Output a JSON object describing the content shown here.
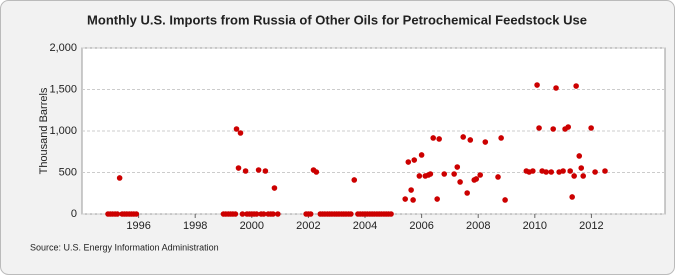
{
  "chart_data": {
    "type": "scatter",
    "title": "Monthly U.S. Imports from Russia of Other Oils for Petrochemical Feedstock Use",
    "y_label": "Thousand Barrels",
    "source": "Source: U.S. Energy Information Administration",
    "color": "#cc0000",
    "grid": true,
    "xlim": [
      1994,
      2014.6
    ],
    "xticks": [
      1996,
      1998,
      2000,
      2002,
      2004,
      2006,
      2008,
      2010,
      2012
    ],
    "ylim": [
      0,
      2000
    ],
    "yticks": [
      0,
      500,
      {
        "value": 1000,
        "label": "1,000"
      },
      {
        "value": 1500,
        "label": "1,500"
      },
      {
        "value": 2000,
        "label": "2,000"
      }
    ],
    "x": [
      1994.92,
      1995.0,
      1995.08,
      1995.17,
      1995.25,
      1995.33,
      1995.42,
      1995.5,
      1995.58,
      1995.67,
      1995.75,
      1995.83,
      1995.92,
      1999.0,
      1999.08,
      1999.17,
      1999.25,
      1999.33,
      1999.42,
      1999.46,
      1999.53,
      1999.6,
      1999.67,
      1999.78,
      1999.83,
      1999.92,
      2000.0,
      2000.08,
      2000.17,
      2000.24,
      2000.33,
      2000.42,
      2000.48,
      2000.58,
      2000.67,
      2000.75,
      2000.8,
      2000.92,
      2001.92,
      2002.0,
      2002.08,
      2002.18,
      2002.28,
      2002.42,
      2002.5,
      2002.58,
      2002.67,
      2002.75,
      2002.83,
      2002.92,
      2003.0,
      2003.08,
      2003.17,
      2003.25,
      2003.33,
      2003.42,
      2003.5,
      2003.62,
      2003.75,
      2003.83,
      2003.92,
      2004.0,
      2004.08,
      2004.17,
      2004.25,
      2004.33,
      2004.42,
      2004.5,
      2004.58,
      2004.67,
      2004.75,
      2004.83,
      2004.92,
      2005.42,
      2005.53,
      2005.63,
      2005.7,
      2005.74,
      2005.92,
      2006.0,
      2006.13,
      2006.24,
      2006.31,
      2006.41,
      2006.55,
      2006.62,
      2006.8,
      2007.15,
      2007.26,
      2007.36,
      2007.47,
      2007.61,
      2007.72,
      2007.86,
      2007.93,
      2008.07,
      2008.25,
      2008.7,
      2008.81,
      2008.95,
      2009.7,
      2009.8,
      2009.93,
      2010.08,
      2010.15,
      2010.26,
      2010.4,
      2010.58,
      2010.65,
      2010.75,
      2010.86,
      2011.0,
      2011.07,
      2011.18,
      2011.25,
      2011.32,
      2011.39,
      2011.46,
      2011.57,
      2011.64,
      2011.71,
      2011.99,
      2012.13,
      2012.48
    ],
    "values": [
      0,
      0,
      0,
      0,
      0,
      434,
      0,
      0,
      0,
      0,
      0,
      0,
      0,
      0,
      0,
      0,
      0,
      0,
      0,
      1024,
      554,
      976,
      0,
      518,
      0,
      0,
      0,
      0,
      0,
      530,
      0,
      0,
      518,
      0,
      0,
      0,
      313,
      0,
      0,
      0,
      0,
      530,
      506,
      0,
      0,
      0,
      0,
      0,
      0,
      0,
      0,
      0,
      0,
      0,
      0,
      0,
      0,
      410,
      0,
      0,
      0,
      0,
      0,
      0,
      0,
      0,
      0,
      0,
      0,
      0,
      0,
      0,
      0,
      180,
      626,
      289,
      169,
      650,
      458,
      711,
      458,
      470,
      482,
      916,
      180,
      904,
      482,
      482,
      566,
      386,
      928,
      253,
      892,
      410,
      422,
      470,
      867,
      446,
      916,
      169,
      518,
      506,
      518,
      1554,
      1036,
      518,
      506,
      506,
      1024,
      1518,
      506,
      518,
      1024,
      1048,
      518,
      205,
      458,
      1542,
      699,
      554,
      458,
      1036,
      506,
      518
    ]
  }
}
